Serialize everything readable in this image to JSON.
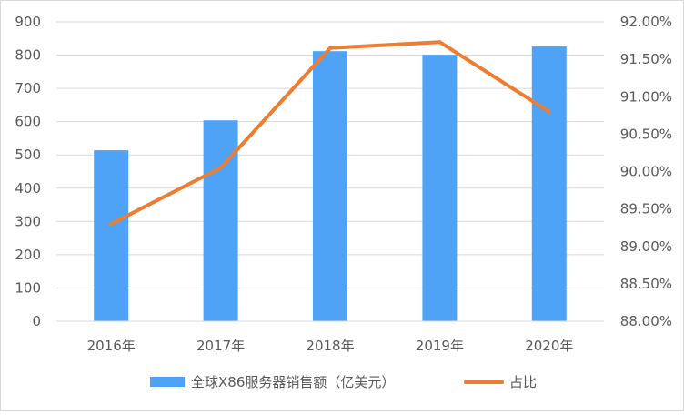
{
  "chart_data": {
    "type": "bar+line",
    "categories": [
      "2016年",
      "2017年",
      "2018年",
      "2019年",
      "2020年"
    ],
    "series": [
      {
        "name": "全球X86服务器销售额（亿美元）",
        "type": "bar",
        "axis": "left",
        "color": "#4fa3f7",
        "values": [
          514,
          604,
          812,
          801,
          826
        ]
      },
      {
        "name": "占比",
        "type": "line",
        "axis": "right",
        "color": "#ed7d31",
        "values": [
          89.3,
          90.05,
          91.65,
          91.73,
          90.8
        ]
      }
    ],
    "y_left": {
      "min": 0,
      "max": 900,
      "step": 100,
      "ticks": [
        "0",
        "100",
        "200",
        "300",
        "400",
        "500",
        "600",
        "700",
        "800",
        "900"
      ]
    },
    "y_right": {
      "min": 88.0,
      "max": 92.0,
      "step": 0.5,
      "ticks": [
        "88.00%",
        "88.50%",
        "89.00%",
        "89.50%",
        "90.00%",
        "90.50%",
        "91.00%",
        "91.50%",
        "92.00%"
      ]
    },
    "grid": true,
    "legend_position": "bottom"
  }
}
